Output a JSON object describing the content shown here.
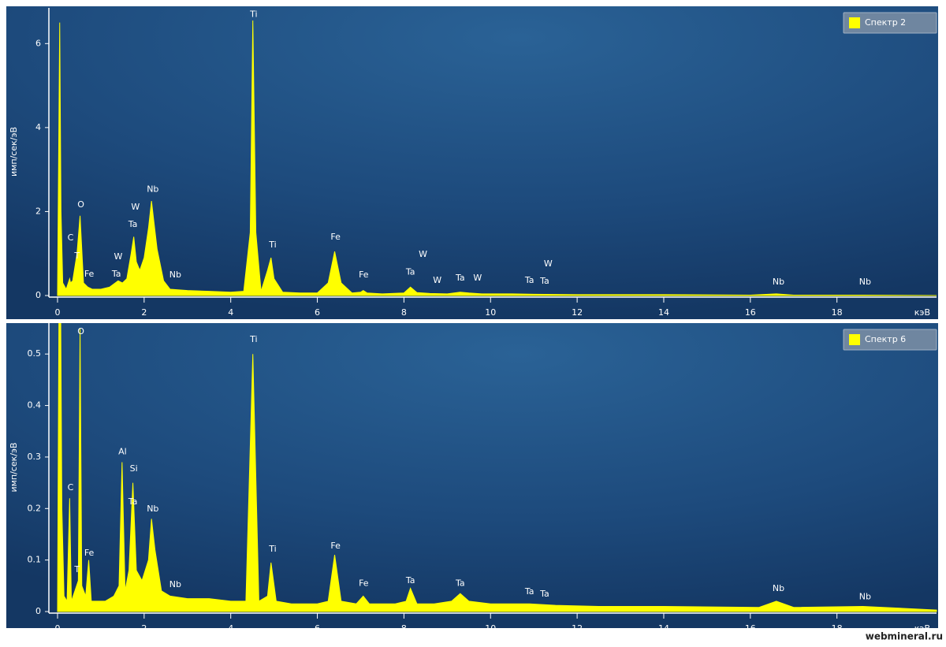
{
  "chart_data": [
    {
      "type": "area",
      "y_label": "имп/сек/эВ",
      "x_label": "кэВ",
      "xlim": [
        -0.2,
        20.3
      ],
      "ylim": [
        0,
        6.85
      ],
      "xticks": [
        0,
        2,
        4,
        6,
        8,
        10,
        12,
        14,
        16,
        18
      ],
      "yticks": [
        0,
        2,
        4,
        6
      ],
      "legend": "upper right",
      "x": [
        0,
        0.05,
        0.08,
        0.12,
        0.2,
        0.28,
        0.3,
        0.35,
        0.45,
        0.52,
        0.6,
        0.7,
        0.8,
        1.0,
        1.2,
        1.4,
        1.5,
        1.6,
        1.7,
        1.76,
        1.82,
        1.9,
        2.0,
        2.1,
        2.17,
        2.22,
        2.3,
        2.45,
        2.6,
        3.0,
        3.5,
        4.0,
        4.3,
        4.45,
        4.51,
        4.58,
        4.7,
        4.85,
        4.93,
        5.0,
        5.2,
        5.6,
        6.0,
        6.25,
        6.4,
        6.55,
        6.8,
        7.0,
        7.06,
        7.15,
        7.5,
        8.0,
        8.15,
        8.3,
        8.6,
        9.0,
        9.3,
        9.5,
        9.8,
        10.5,
        11.0,
        12.0,
        14.0,
        16.0,
        16.6,
        17.0,
        18.6,
        20.3
      ],
      "series": [
        {
          "name": "Спектр 2",
          "color": "#ffff00",
          "values": [
            0,
            6.5,
            2,
            0.3,
            0.15,
            0.4,
            0.3,
            0.35,
            1.0,
            1.9,
            0.3,
            0.2,
            0.15,
            0.15,
            0.2,
            0.35,
            0.3,
            0.4,
            1.0,
            1.4,
            0.8,
            0.6,
            0.9,
            1.6,
            2.25,
            1.8,
            1.1,
            0.35,
            0.15,
            0.12,
            0.1,
            0.08,
            0.1,
            1.5,
            6.55,
            1.5,
            0.1,
            0.6,
            0.9,
            0.4,
            0.08,
            0.06,
            0.06,
            0.3,
            1.05,
            0.3,
            0.06,
            0.08,
            0.12,
            0.06,
            0.04,
            0.06,
            0.2,
            0.07,
            0.05,
            0.04,
            0.08,
            0.06,
            0.04,
            0.04,
            0.03,
            0.02,
            0.02,
            0.01,
            0.04,
            0.01,
            0.01,
            0
          ]
        }
      ],
      "annotations": [
        {
          "label": "Ti",
          "x": 4.53,
          "y": 6.69
        },
        {
          "label": "O",
          "x": 0.54,
          "y": 2.16
        },
        {
          "label": "C",
          "x": 0.3,
          "y": 1.37
        },
        {
          "label": "T",
          "x": 0.45,
          "y": 0.94
        },
        {
          "label": "Fe",
          "x": 0.73,
          "y": 0.51
        },
        {
          "label": "W",
          "x": 1.8,
          "y": 2.1
        },
        {
          "label": "Ta",
          "x": 1.74,
          "y": 1.69
        },
        {
          "label": "W",
          "x": 1.4,
          "y": 0.92
        },
        {
          "label": "Ta",
          "x": 1.36,
          "y": 0.51
        },
        {
          "label": "Nb",
          "x": 2.2,
          "y": 2.52
        },
        {
          "label": "Nb",
          "x": 2.72,
          "y": 0.49
        },
        {
          "label": "Ti",
          "x": 4.97,
          "y": 1.2
        },
        {
          "label": "Fe",
          "x": 6.42,
          "y": 1.39
        },
        {
          "label": "Fe",
          "x": 7.07,
          "y": 0.49
        },
        {
          "label": "W",
          "x": 8.44,
          "y": 0.98
        },
        {
          "label": "Ta",
          "x": 8.15,
          "y": 0.55
        },
        {
          "label": "W",
          "x": 8.77,
          "y": 0.36
        },
        {
          "label": "Ta",
          "x": 9.3,
          "y": 0.41
        },
        {
          "label": "W",
          "x": 9.7,
          "y": 0.41
        },
        {
          "label": "Ta",
          "x": 10.9,
          "y": 0.36
        },
        {
          "label": "W",
          "x": 11.33,
          "y": 0.75
        },
        {
          "label": "Ta",
          "x": 11.25,
          "y": 0.34
        },
        {
          "label": "Nb",
          "x": 16.65,
          "y": 0.32
        },
        {
          "label": "Nb",
          "x": 18.65,
          "y": 0.32
        }
      ]
    },
    {
      "type": "area",
      "y_label": "имп/сек/эВ",
      "x_label": "кэВ",
      "xlim": [
        -0.2,
        20.3
      ],
      "ylim": [
        0,
        0.56
      ],
      "xticks": [
        0,
        2,
        4,
        6,
        8,
        10,
        12,
        14,
        16,
        18
      ],
      "yticks": [
        0,
        0.1,
        0.2,
        0.3,
        0.4,
        0.5
      ],
      "legend": "upper right",
      "x": [
        0,
        0.05,
        0.1,
        0.15,
        0.22,
        0.28,
        0.32,
        0.4,
        0.48,
        0.52,
        0.56,
        0.65,
        0.72,
        0.78,
        0.9,
        1.1,
        1.3,
        1.42,
        1.49,
        1.56,
        1.65,
        1.74,
        1.82,
        1.95,
        2.1,
        2.17,
        2.25,
        2.4,
        2.6,
        3.0,
        3.5,
        4.0,
        4.35,
        4.51,
        4.65,
        4.85,
        4.93,
        5.05,
        5.4,
        6.0,
        6.25,
        6.4,
        6.55,
        6.9,
        7.06,
        7.2,
        7.8,
        8.05,
        8.15,
        8.3,
        8.7,
        9.1,
        9.3,
        9.5,
        10.0,
        10.9,
        11.5,
        12.5,
        14.0,
        16.2,
        16.6,
        17.0,
        18.6,
        20.3
      ],
      "series": [
        {
          "name": "Спектр 6",
          "color": "#ffff00",
          "values": [
            0,
            0.9,
            0.2,
            0.03,
            0.02,
            0.22,
            0.02,
            0.04,
            0.06,
            0.55,
            0.05,
            0.03,
            0.1,
            0.02,
            0.02,
            0.02,
            0.03,
            0.05,
            0.29,
            0.04,
            0.08,
            0.25,
            0.08,
            0.06,
            0.1,
            0.18,
            0.12,
            0.04,
            0.03,
            0.025,
            0.025,
            0.02,
            0.02,
            0.5,
            0.02,
            0.03,
            0.095,
            0.02,
            0.015,
            0.015,
            0.02,
            0.11,
            0.02,
            0.015,
            0.03,
            0.015,
            0.015,
            0.02,
            0.045,
            0.015,
            0.015,
            0.02,
            0.035,
            0.02,
            0.015,
            0.015,
            0.012,
            0.01,
            0.01,
            0.008,
            0.02,
            0.008,
            0.01,
            0.003
          ]
        }
      ],
      "annotations": [
        {
          "label": "O",
          "x": 0.54,
          "y": 0.543
        },
        {
          "label": "C",
          "x": 0.3,
          "y": 0.24
        },
        {
          "label": "T",
          "x": 0.45,
          "y": 0.081
        },
        {
          "label": "Fe",
          "x": 0.73,
          "y": 0.113
        },
        {
          "label": "Al",
          "x": 1.5,
          "y": 0.31
        },
        {
          "label": "Si",
          "x": 1.76,
          "y": 0.277
        },
        {
          "label": "Ta",
          "x": 1.74,
          "y": 0.213
        },
        {
          "label": "Nb",
          "x": 2.2,
          "y": 0.199
        },
        {
          "label": "Nb",
          "x": 2.72,
          "y": 0.052
        },
        {
          "label": "Ti",
          "x": 4.53,
          "y": 0.528
        },
        {
          "label": "Ti",
          "x": 4.97,
          "y": 0.121
        },
        {
          "label": "Fe",
          "x": 6.42,
          "y": 0.127
        },
        {
          "label": "Fe",
          "x": 7.07,
          "y": 0.054
        },
        {
          "label": "Ta",
          "x": 8.15,
          "y": 0.06
        },
        {
          "label": "Ta",
          "x": 9.3,
          "y": 0.054
        },
        {
          "label": "Ta",
          "x": 10.9,
          "y": 0.038
        },
        {
          "label": "Ta",
          "x": 11.25,
          "y": 0.034
        },
        {
          "label": "Nb",
          "x": 16.65,
          "y": 0.044
        },
        {
          "label": "Nb",
          "x": 18.65,
          "y": 0.028
        }
      ]
    }
  ],
  "watermark": "webmineral.ru"
}
